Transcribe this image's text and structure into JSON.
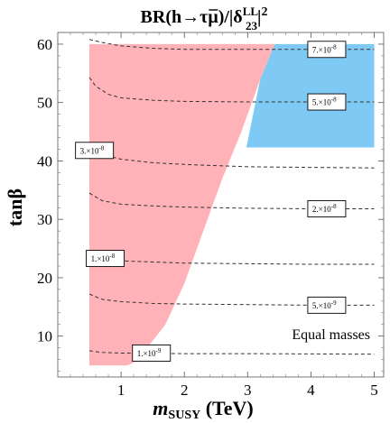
{
  "chart_data": {
    "type": "contour",
    "title_parts": [
      "BR(h→τ",
      "μ",
      ")/|δ",
      "LL",
      "23",
      "|",
      "2"
    ],
    "xlabel_main": "m",
    "xlabel_sub": "SUSY",
    "xlabel_unit": " (TeV)",
    "ylabel": "tanβ",
    "xlim": [
      0,
      5.15
    ],
    "ylim": [
      3,
      62
    ],
    "xticks": [
      1,
      2,
      3,
      4,
      5
    ],
    "xticklabels": [
      "1",
      "2",
      "3",
      "4",
      "5"
    ],
    "yticks": [
      10,
      20,
      30,
      40,
      50,
      60
    ],
    "yticklabels": [
      "10",
      "20",
      "30",
      "40",
      "50",
      "60"
    ],
    "annotation": "Equal masses",
    "colors": {
      "excluded_red": "#ffb2b7",
      "excluded_blue": "#7fcaf5",
      "contour": "#333333"
    },
    "regions": [
      {
        "color_key": "excluded_red",
        "polygon": [
          [
            0.5,
            5
          ],
          [
            0.5,
            60
          ],
          [
            3.43,
            60
          ],
          [
            3.2,
            54
          ],
          [
            2.9,
            45
          ],
          [
            2.6,
            37
          ],
          [
            2.3,
            28
          ],
          [
            2.0,
            19
          ],
          [
            1.7,
            12
          ],
          [
            1.4,
            7.8
          ],
          [
            1.2,
            5.5
          ],
          [
            1.1,
            5
          ]
        ]
      },
      {
        "color_key": "excluded_blue",
        "polygon": [
          [
            2.98,
            42.3
          ],
          [
            5.0,
            42.3
          ],
          [
            5.0,
            60
          ],
          [
            3.43,
            60
          ],
          [
            3.2,
            54
          ]
        ]
      }
    ],
    "contours": [
      {
        "label": "7.×10",
        "exp": "-8",
        "label_at": [
          4.25,
          59.1
        ],
        "points": [
          [
            0.5,
            60.8
          ],
          [
            0.7,
            60.3
          ],
          [
            1.0,
            59.7
          ],
          [
            1.5,
            59.3
          ],
          [
            2.0,
            59.1
          ],
          [
            3.0,
            59.1
          ],
          [
            4.0,
            59.1
          ],
          [
            5.0,
            59.1
          ]
        ]
      },
      {
        "label": "5.×10",
        "exp": "-8",
        "label_at": [
          4.25,
          50.1
        ],
        "points": [
          [
            0.5,
            54.3
          ],
          [
            0.6,
            52.8
          ],
          [
            0.8,
            51.4
          ],
          [
            1.0,
            50.8
          ],
          [
            1.5,
            50.4
          ],
          [
            2.0,
            50.2
          ],
          [
            3.0,
            50.1
          ],
          [
            4.0,
            50.1
          ],
          [
            5.0,
            50.1
          ]
        ]
      },
      {
        "label": "3.×10",
        "exp": "-8",
        "label_at": [
          0.58,
          41.8
        ],
        "points": [
          [
            0.5,
            42.3
          ],
          [
            0.7,
            41.1
          ],
          [
            1.0,
            40.3
          ],
          [
            1.5,
            39.7
          ],
          [
            2.0,
            39.4
          ],
          [
            3.0,
            39.0
          ],
          [
            4.0,
            38.9
          ],
          [
            5.0,
            38.8
          ]
        ]
      },
      {
        "label": "2.×10",
        "exp": "-8",
        "label_at": [
          4.25,
          31.8
        ],
        "points": [
          [
            0.5,
            34.5
          ],
          [
            0.7,
            33.2
          ],
          [
            1.0,
            32.6
          ],
          [
            1.5,
            32.3
          ],
          [
            2.0,
            32.1
          ],
          [
            3.0,
            31.9
          ],
          [
            4.0,
            31.8
          ],
          [
            5.0,
            31.8
          ]
        ]
      },
      {
        "label": "1.×10",
        "exp": "-8",
        "label_at": [
          0.75,
          23.3
        ],
        "points": [
          [
            0.5,
            24.7
          ],
          [
            0.7,
            23.4
          ],
          [
            1.0,
            22.9
          ],
          [
            1.5,
            22.7
          ],
          [
            2.0,
            22.5
          ],
          [
            3.0,
            22.4
          ],
          [
            4.0,
            22.3
          ],
          [
            5.0,
            22.3
          ]
        ]
      },
      {
        "label": "5.×10",
        "exp": "-9",
        "label_at": [
          4.25,
          15.3
        ],
        "points": [
          [
            0.5,
            17.2
          ],
          [
            0.7,
            16.3
          ],
          [
            1.0,
            15.9
          ],
          [
            1.5,
            15.6
          ],
          [
            2.0,
            15.5
          ],
          [
            3.0,
            15.4
          ],
          [
            4.0,
            15.3
          ],
          [
            5.0,
            15.3
          ]
        ]
      },
      {
        "label": "1.×10",
        "exp": "-9",
        "label_at": [
          1.48,
          7.1
        ],
        "points": [
          [
            0.5,
            7.5
          ],
          [
            0.7,
            7.2
          ],
          [
            1.0,
            7.1
          ],
          [
            1.5,
            7.05
          ],
          [
            2.0,
            7.0
          ],
          [
            3.0,
            7.0
          ],
          [
            4.0,
            6.95
          ],
          [
            5.0,
            6.9
          ]
        ]
      }
    ]
  }
}
